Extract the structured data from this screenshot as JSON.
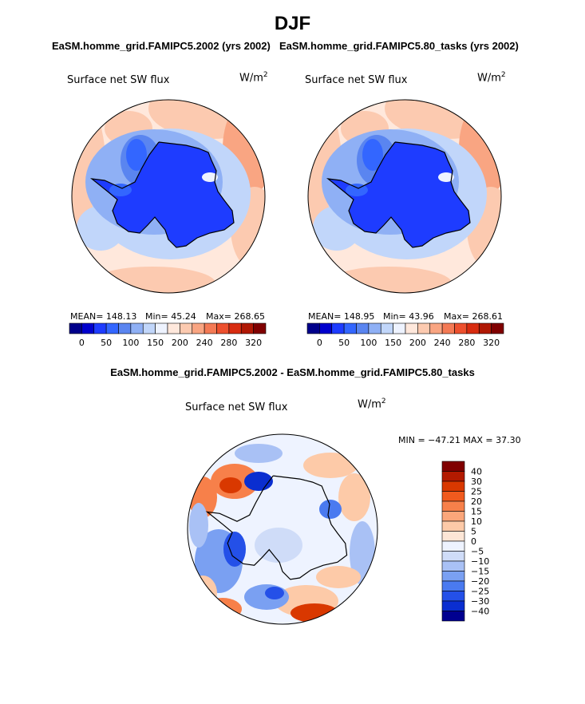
{
  "page": {
    "title": "DJF"
  },
  "panels": {
    "left": {
      "case_title": "EaSM.homme_grid.FAMIPC5.2002 (yrs 2002)",
      "variable": "Surface net SW flux",
      "units_base": "W/m",
      "units_exp": "2",
      "stats": {
        "mean": "MEAN= 148.13",
        "min": "Min=  45.24",
        "max": "Max= 268.65"
      }
    },
    "right": {
      "case_title": "EaSM.homme_grid.FAMIPC5.80_tasks (yrs 2002)",
      "variable": "Surface net SW flux",
      "units_base": "W/m",
      "units_exp": "2",
      "stats": {
        "mean": "MEAN= 148.95",
        "min": "Min=  43.96",
        "max": "Max= 268.61"
      }
    },
    "diff": {
      "case_title": "EaSM.homme_grid.FAMIPC5.2002 - EaSM.homme_grid.FAMIPC5.80_tasks",
      "variable": "Surface net SW flux",
      "units_base": "W/m",
      "units_exp": "2",
      "stats": "MIN = −47.21 MAX =  37.30"
    }
  },
  "chart_data": [
    {
      "type": "heatmap",
      "projection": "south polar stereographic",
      "title": "Surface net SW flux",
      "case": "EaSM.homme_grid.FAMIPC5.2002 (yrs 2002)",
      "units": "W/m2",
      "mean": 148.13,
      "min": 45.24,
      "max": 268.65,
      "colorbar": {
        "orientation": "horizontal",
        "tick_labels": [
          "0",
          "50",
          "100",
          "150",
          "200",
          "240",
          "280",
          "320"
        ],
        "colors": [
          "#00008b",
          "#0000cd",
          "#1e3cff",
          "#3366ff",
          "#5a85f0",
          "#8fb0f5",
          "#c1d6fa",
          "#eef3ff",
          "#ffe8dc",
          "#fccab0",
          "#f9a582",
          "#f47a55",
          "#ed502e",
          "#d82c10",
          "#b01804",
          "#800000"
        ]
      }
    },
    {
      "type": "heatmap",
      "projection": "south polar stereographic",
      "title": "Surface net SW flux",
      "case": "EaSM.homme_grid.FAMIPC5.80_tasks (yrs 2002)",
      "units": "W/m2",
      "mean": 148.95,
      "min": 43.96,
      "max": 268.61,
      "colorbar": {
        "orientation": "horizontal",
        "tick_labels": [
          "0",
          "50",
          "100",
          "150",
          "200",
          "240",
          "280",
          "320"
        ],
        "colors": [
          "#00008b",
          "#0000cd",
          "#1e3cff",
          "#3366ff",
          "#5a85f0",
          "#8fb0f5",
          "#c1d6fa",
          "#eef3ff",
          "#ffe8dc",
          "#fccab0",
          "#f9a582",
          "#f47a55",
          "#ed502e",
          "#d82c10",
          "#b01804",
          "#800000"
        ]
      }
    },
    {
      "type": "heatmap",
      "projection": "south polar stereographic",
      "title": "Surface net SW flux",
      "case": "EaSM.homme_grid.FAMIPC5.2002 - EaSM.homme_grid.FAMIPC5.80_tasks",
      "units": "W/m2",
      "min": -47.21,
      "max": 37.3,
      "colorbar": {
        "orientation": "vertical",
        "tick_labels": [
          "40",
          "30",
          "25",
          "20",
          "15",
          "10",
          "5",
          "0",
          "−5",
          "−10",
          "−15",
          "−20",
          "−25",
          "−30",
          "−40"
        ],
        "colors": [
          "#800000",
          "#b31a00",
          "#d93800",
          "#f05a1e",
          "#f7804a",
          "#fba67a",
          "#fdcaa8",
          "#fde6d6",
          "#eef3ff",
          "#cfdcf8",
          "#a9c1f5",
          "#7aa0f2",
          "#4a7af0",
          "#2450e8",
          "#0a2ed0",
          "#000090"
        ]
      }
    }
  ]
}
